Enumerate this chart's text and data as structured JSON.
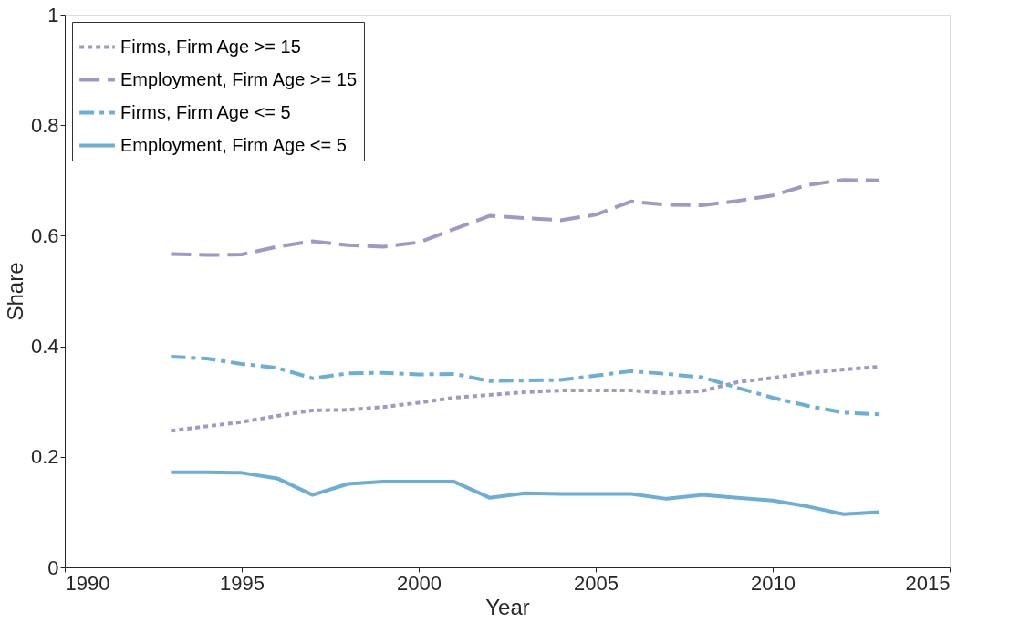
{
  "chart_data": {
    "type": "line",
    "xlabel": "Year",
    "ylabel": "Share",
    "x": [
      1993,
      1994,
      1995,
      1996,
      1997,
      1998,
      1999,
      2000,
      2001,
      2002,
      2003,
      2004,
      2005,
      2006,
      2007,
      2008,
      2009,
      2010,
      2011,
      2012,
      2013
    ],
    "series": [
      {
        "name": "Firms, Firm Age >= 15",
        "color": "#9e9ac8",
        "line_style": "dotted",
        "values": [
          0.247,
          0.255,
          0.263,
          0.274,
          0.284,
          0.285,
          0.29,
          0.298,
          0.307,
          0.312,
          0.317,
          0.32,
          0.32,
          0.32,
          0.315,
          0.319,
          0.335,
          0.343,
          0.352,
          0.358,
          0.363
        ]
      },
      {
        "name": "Employment, Firm Age >= 15",
        "color": "#9e9ac8",
        "line_style": "dashed",
        "values": [
          0.567,
          0.565,
          0.566,
          0.58,
          0.59,
          0.583,
          0.58,
          0.588,
          0.612,
          0.636,
          0.632,
          0.628,
          0.638,
          0.662,
          0.656,
          0.655,
          0.663,
          0.673,
          0.692,
          0.701,
          0.7
        ]
      },
      {
        "name": "Firms, Firm Age <= 5",
        "color": "#6baed6",
        "line_style": "dashdot",
        "values": [
          0.381,
          0.378,
          0.368,
          0.361,
          0.342,
          0.351,
          0.352,
          0.349,
          0.35,
          0.337,
          0.338,
          0.339,
          0.347,
          0.355,
          0.35,
          0.344,
          0.325,
          0.307,
          0.292,
          0.28,
          0.277
        ]
      },
      {
        "name": "Employment, Firm Age <= 5",
        "color": "#6baed6",
        "line_style": "solid",
        "values": [
          0.172,
          0.172,
          0.171,
          0.161,
          0.131,
          0.151,
          0.155,
          0.155,
          0.155,
          0.126,
          0.134,
          0.133,
          0.133,
          0.133,
          0.124,
          0.131,
          0.126,
          0.121,
          0.11,
          0.096,
          0.1
        ]
      }
    ],
    "xlim": [
      1990,
      2015
    ],
    "xticks": [
      1990,
      1995,
      2000,
      2005,
      2010,
      2015
    ],
    "ylim": [
      0,
      1
    ],
    "yticks": [
      0,
      0.2,
      0.4,
      0.6,
      0.8,
      1
    ],
    "grid": false,
    "legend": "top left"
  }
}
